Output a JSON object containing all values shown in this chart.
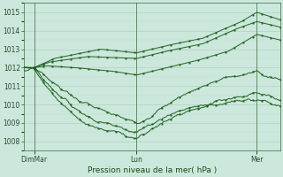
{
  "title": "Pression niveau de la mer( hPa )",
  "bg_color": "#cce8dc",
  "grid_color_major": "#aaccbb",
  "grid_color_minor": "#bbddd0",
  "line_color": "#1a5c1a",
  "ylim": [
    1007.5,
    1015.5
  ],
  "yticks": [
    1008,
    1009,
    1010,
    1011,
    1012,
    1013,
    1014,
    1015
  ],
  "xtick_labels": [
    "DimMar",
    "Lun",
    "Mer"
  ],
  "xtick_positions": [
    0.04,
    0.44,
    0.91
  ],
  "lines": [
    {
      "pts_x": [
        0.04,
        0.12,
        0.3,
        0.44,
        0.56,
        0.7,
        0.85,
        0.91,
        1.0
      ],
      "pts_y": [
        1012.0,
        1012.5,
        1013.0,
        1012.8,
        1013.2,
        1013.6,
        1014.5,
        1015.0,
        1014.6
      ],
      "wiggly": false
    },
    {
      "pts_x": [
        0.04,
        0.1,
        0.25,
        0.44,
        0.56,
        0.7,
        0.83,
        0.91,
        1.0
      ],
      "pts_y": [
        1012.0,
        1012.3,
        1012.6,
        1012.5,
        1012.9,
        1013.3,
        1014.1,
        1014.5,
        1014.2
      ],
      "wiggly": false
    },
    {
      "pts_x": [
        0.04,
        0.09,
        0.2,
        0.35,
        0.44,
        0.56,
        0.68,
        0.8,
        0.91,
        1.0
      ],
      "pts_y": [
        1012.0,
        1012.1,
        1012.0,
        1011.8,
        1011.6,
        1012.0,
        1012.4,
        1012.9,
        1013.8,
        1013.5
      ],
      "wiggly": false
    },
    {
      "pts_x": [
        0.04,
        0.09,
        0.15,
        0.22,
        0.3,
        0.38,
        0.44,
        0.5,
        0.56,
        0.62,
        0.68,
        0.74,
        0.8,
        0.86,
        0.91,
        0.96,
        1.0
      ],
      "pts_y": [
        1012.0,
        1011.5,
        1010.8,
        1010.2,
        1009.7,
        1009.3,
        1009.0,
        1009.4,
        1010.0,
        1010.5,
        1010.9,
        1011.2,
        1011.5,
        1011.6,
        1011.8,
        1011.5,
        1011.3
      ],
      "wiggly": true
    },
    {
      "pts_x": [
        0.04,
        0.08,
        0.14,
        0.2,
        0.27,
        0.34,
        0.4,
        0.44,
        0.48,
        0.53,
        0.58,
        0.64,
        0.7,
        0.76,
        0.82,
        0.88,
        0.91,
        0.96,
        1.0
      ],
      "pts_y": [
        1012.0,
        1011.3,
        1010.5,
        1009.8,
        1009.2,
        1008.9,
        1008.7,
        1008.5,
        1008.8,
        1009.2,
        1009.5,
        1009.8,
        1010.0,
        1010.2,
        1010.4,
        1010.5,
        1010.6,
        1010.4,
        1010.2
      ],
      "wiggly": true
    },
    {
      "pts_x": [
        0.04,
        0.08,
        0.13,
        0.18,
        0.24,
        0.3,
        0.36,
        0.4,
        0.44,
        0.48,
        0.53,
        0.58,
        0.63,
        0.68,
        0.74,
        0.8,
        0.86,
        0.91,
        0.96,
        1.0
      ],
      "pts_y": [
        1011.9,
        1011.1,
        1010.3,
        1009.6,
        1009.0,
        1008.7,
        1008.5,
        1008.3,
        1008.2,
        1008.5,
        1008.9,
        1009.3,
        1009.6,
        1009.8,
        1010.0,
        1010.1,
        1010.2,
        1010.3,
        1010.1,
        1009.9
      ],
      "wiggly": true
    }
  ]
}
